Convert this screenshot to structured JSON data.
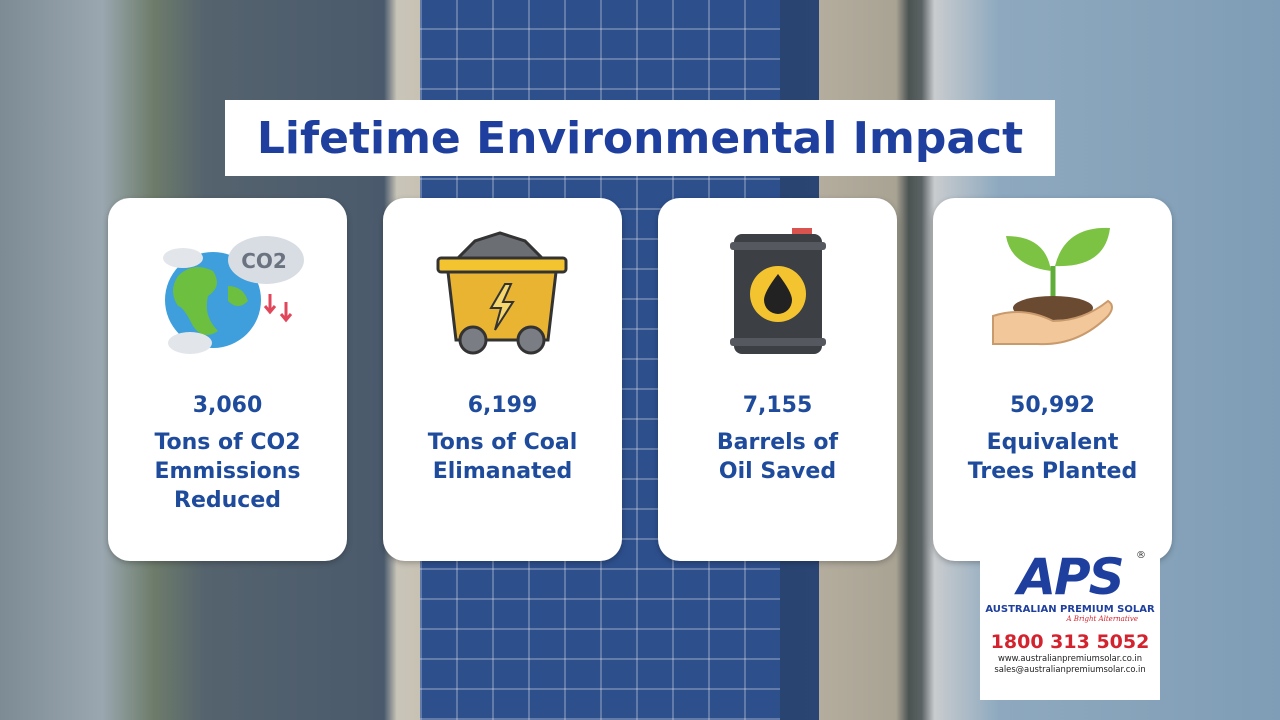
{
  "header": {
    "title": "Lifetime Environmental Impact"
  },
  "cards": [
    {
      "value": "3,060",
      "lines": [
        "Tons of CO2",
        "Emmissions",
        "Reduced"
      ],
      "icon_text": "CO2"
    },
    {
      "value": "6,199",
      "lines": [
        "Tons of Coal",
        "Elimanated"
      ]
    },
    {
      "value": "7,155",
      "lines": [
        "Barrels of",
        "Oil Saved"
      ]
    },
    {
      "value": "50,992",
      "lines": [
        "Equivalent",
        "Trees Planted"
      ]
    }
  ],
  "logo": {
    "mark": "APS",
    "registered": "®",
    "name": "AUSTRALIAN PREMIUM SOLAR",
    "tagline": "A Bright Alternative",
    "phone": "1800 313 5052",
    "website": "www.australianpremiumsolar.co.in",
    "email": "sales@australianpremiumsolar.co.in"
  }
}
